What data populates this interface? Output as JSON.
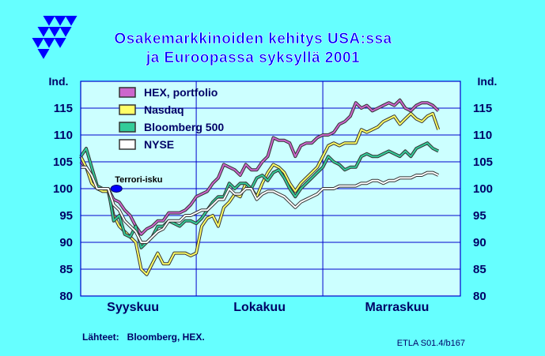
{
  "colors": {
    "background": "#66ffff",
    "plot_bg": "#ccffff",
    "title": "#0000ff",
    "axis": "#0000cc",
    "logo": "#0000ff"
  },
  "logo": {
    "icon": "etla-triangle-logo-icon"
  },
  "footer": {
    "source": "Lähteet:   Bloomberg, HEX.",
    "code": "ETLA S01.4/b167"
  },
  "chart_data": {
    "type": "line",
    "title": [
      "Osakemarkkinoiden  kehitys  USA:ssa",
      "ja  Euroopassa  syksyllä  2001"
    ],
    "ylabel_left": "Ind.",
    "ylabel_right": "Ind.",
    "ylim": [
      80,
      120
    ],
    "yticks": [
      80,
      85,
      90,
      95,
      100,
      105,
      110,
      115
    ],
    "xlim": [
      0,
      69
    ],
    "months": [
      {
        "label": "Syyskuu",
        "center": 9.5
      },
      {
        "label": "Lokakuu",
        "center": 32.5
      },
      {
        "label": "Marraskuu",
        "center": 57.5
      }
    ],
    "month_boundaries": [
      21,
      44
    ],
    "grid": true,
    "legend_position": "top-left",
    "annotation": {
      "text": "Terrori-isku",
      "x": 6.5,
      "y": 100,
      "marker_color": "#0000ff"
    },
    "series": [
      {
        "name": "HEX, portfolio",
        "color": "#cc66cc",
        "x": [
          0,
          1,
          2,
          3,
          4,
          5,
          6,
          7,
          8,
          9,
          10,
          11,
          12,
          13,
          14,
          15,
          16,
          17,
          18,
          19,
          20,
          21,
          22,
          23,
          24,
          25,
          26,
          27,
          28,
          29,
          30,
          31,
          32,
          33,
          34,
          35,
          36,
          37,
          38,
          39,
          40,
          41,
          42,
          43,
          44,
          45,
          46,
          47,
          48,
          49,
          50,
          51,
          52,
          53,
          54,
          55,
          56,
          57,
          58,
          59,
          60,
          61,
          62,
          63,
          64,
          65
        ],
        "values": [
          105,
          104,
          102,
          100,
          100,
          100,
          98,
          97.5,
          96,
          95,
          93,
          91.5,
          92.5,
          93,
          94,
          94,
          95.5,
          95.5,
          95.5,
          96,
          97,
          98.5,
          99,
          99.5,
          101,
          102,
          104.5,
          104,
          103.5,
          102.5,
          104.5,
          103.5,
          103.5,
          105,
          106,
          109.5,
          109,
          109,
          108.5,
          106,
          108,
          108.5,
          108.5,
          109.5,
          110,
          110,
          110.5,
          112,
          112.5,
          113.5,
          116,
          115,
          115.5,
          114.5,
          115,
          115.5,
          116,
          115.5,
          116.5,
          115,
          114.5,
          115.5,
          116,
          116,
          115.5,
          114.5
        ]
      },
      {
        "name": "Nasdaq",
        "color": "#ffff66",
        "x": [
          0,
          1,
          2,
          3,
          4,
          5,
          6,
          7,
          8,
          9,
          10,
          11,
          12,
          13,
          14,
          15,
          16,
          17,
          18,
          19,
          20,
          21,
          22,
          23,
          24,
          25,
          26,
          27,
          28,
          29,
          30,
          31,
          32,
          33,
          34,
          35,
          36,
          37,
          38,
          39,
          40,
          41,
          42,
          43,
          44,
          45,
          46,
          47,
          48,
          49,
          50,
          51,
          52,
          53,
          54,
          55,
          56,
          57,
          58,
          59,
          60,
          61,
          62,
          63,
          64,
          65
        ],
        "values": [
          106,
          104,
          101,
          100,
          99.5,
          99.5,
          95,
          93,
          92,
          91,
          90,
          85,
          84,
          86,
          88,
          86,
          86,
          88,
          88,
          88,
          87.5,
          88,
          93,
          94.5,
          95,
          93,
          96.5,
          97.5,
          99,
          98.5,
          101,
          100,
          98.5,
          101,
          103,
          104.5,
          104,
          103,
          101,
          99.5,
          101,
          102,
          103,
          104,
          106,
          108,
          108.5,
          108,
          108.5,
          108.5,
          108.5,
          111,
          110.5,
          111,
          111.5,
          112.5,
          113,
          113.5,
          112,
          113,
          114,
          113,
          112.5,
          113.5,
          114,
          111
        ]
      },
      {
        "name": "Bloomberg 500",
        "color": "#33cc99",
        "x": [
          0,
          1,
          2,
          3,
          4,
          5,
          6,
          7,
          8,
          9,
          10,
          11,
          12,
          13,
          14,
          15,
          16,
          17,
          18,
          19,
          20,
          21,
          22,
          23,
          24,
          25,
          26,
          27,
          28,
          29,
          30,
          31,
          32,
          33,
          34,
          35,
          36,
          37,
          38,
          39,
          40,
          41,
          42,
          43,
          44,
          45,
          46,
          47,
          48,
          49,
          50,
          51,
          52,
          53,
          54,
          55,
          56,
          57,
          58,
          59,
          60,
          61,
          62,
          63,
          64,
          65
        ],
        "values": [
          106,
          107.5,
          104,
          100.5,
          100,
          100,
          94,
          95,
          91.5,
          91,
          93,
          89,
          90,
          91,
          93,
          93,
          94,
          93.5,
          93,
          94,
          94,
          93.5,
          94.5,
          96,
          97.5,
          98.5,
          98.5,
          101,
          100,
          101,
          101,
          100,
          102,
          102.5,
          101.5,
          103,
          103.5,
          102,
          100,
          98.5,
          100,
          101,
          102,
          103,
          104,
          106,
          105,
          104.5,
          103.5,
          104,
          104,
          106,
          106.5,
          106,
          106,
          106.5,
          107,
          106.5,
          106,
          107,
          106,
          107.5,
          108,
          108.5,
          107.5,
          107
        ]
      },
      {
        "name": "NYSE",
        "color": "#ffffff",
        "x": [
          0,
          1,
          2,
          3,
          4,
          5,
          6,
          7,
          8,
          9,
          10,
          11,
          12,
          13,
          14,
          15,
          16,
          17,
          18,
          19,
          20,
          21,
          22,
          23,
          24,
          25,
          26,
          27,
          28,
          29,
          30,
          31,
          32,
          33,
          34,
          35,
          36,
          37,
          38,
          39,
          40,
          41,
          42,
          43,
          44,
          45,
          46,
          47,
          48,
          49,
          50,
          51,
          52,
          53,
          54,
          55,
          56,
          57,
          58,
          59,
          60,
          61,
          62,
          63,
          64,
          65
        ],
        "values": [
          104,
          104,
          102.5,
          100,
          100,
          100,
          97,
          96,
          94,
          93,
          92,
          90,
          90,
          91,
          92,
          92.5,
          94,
          94,
          94,
          95,
          95,
          95.5,
          96,
          96,
          97,
          98,
          98,
          100,
          99,
          99,
          100,
          100,
          98,
          99,
          99.5,
          99.5,
          99,
          98.5,
          97.5,
          96.5,
          97.5,
          98,
          98.5,
          99,
          100,
          100,
          100,
          100.5,
          100.5,
          100.5,
          100.5,
          101,
          101,
          101.5,
          101.5,
          101,
          101.5,
          101.5,
          102,
          102,
          102,
          102.5,
          102.5,
          103,
          103,
          102.5
        ]
      }
    ]
  }
}
